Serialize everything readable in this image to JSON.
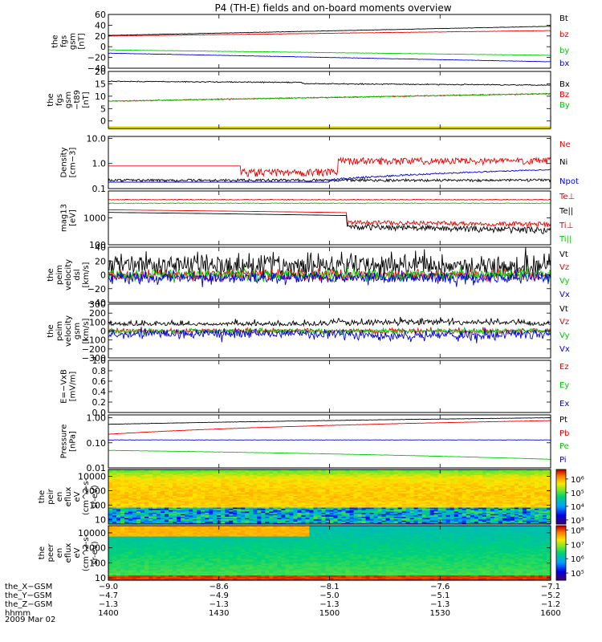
{
  "title": "P4 (TH-E) fields and on-board moments overview",
  "date_label": "2009 Mar 02",
  "colors": {
    "black": "#000000",
    "red": "#ee0000",
    "green": "#00cc00",
    "blue": "#0000dd",
    "yellow": "#ffee00"
  },
  "chart_data": [
    {
      "type": "line",
      "ylabel": [
        "the",
        "fgs",
        "gsm",
        "[nT]"
      ],
      "ylim": [
        -40,
        60
      ],
      "yticks": [
        "60",
        "40",
        "20",
        "0",
        "−20",
        "−40"
      ],
      "ytick_values": [
        60,
        40,
        20,
        0,
        -20,
        -40
      ],
      "series": [
        {
          "name": "Bt",
          "color": "black",
          "start": 21,
          "end": 38
        },
        {
          "name": "bz",
          "color": "red",
          "start": 20,
          "end": 30
        },
        {
          "name": "by",
          "color": "green",
          "start": -6,
          "end": -16
        },
        {
          "name": "bx",
          "color": "blue",
          "start": -12,
          "end": -28
        }
      ]
    },
    {
      "type": "line",
      "ylabel": [
        "the",
        "fgs",
        "gsm",
        "−t89",
        "[nT]"
      ],
      "ylim": [
        -3,
        20
      ],
      "yticks": [
        "20",
        "15",
        "10",
        "5",
        "0"
      ],
      "ytick_values": [
        20,
        15,
        10,
        5,
        0
      ],
      "series": [
        {
          "name": "Bx",
          "color": "black",
          "start": 16,
          "end": 15
        },
        {
          "name": "Bz",
          "color": "red",
          "start": 8,
          "end": 11
        },
        {
          "name": "By",
          "color": "green",
          "start": 8,
          "end": 11
        }
      ]
    },
    {
      "type": "line",
      "scale": "log",
      "ylabel": [
        "Density",
        "[cm−3]"
      ],
      "ylim": [
        0.1,
        12
      ],
      "yticks": [
        "10.0",
        "1.0",
        "0.1"
      ],
      "ytick_values": [
        10,
        1,
        0.1
      ],
      "series": [
        {
          "name": "Ne",
          "color": "red"
        },
        {
          "name": "Ni",
          "color": "black"
        },
        {
          "name": "Npot",
          "color": "blue"
        }
      ]
    },
    {
      "type": "line",
      "scale": "log",
      "ylabel": [
        "mag13",
        "[eV]"
      ],
      "ylim": [
        100,
        10000
      ],
      "yticks": [
        "1000",
        "100"
      ],
      "ytick_values": [
        1000,
        100
      ],
      "series": [
        {
          "name": "Te⊥",
          "color": "red"
        },
        {
          "name": "Te||",
          "color": "black"
        },
        {
          "name": "Ti⊥",
          "color": "red"
        },
        {
          "name": "Ti||",
          "color": "green"
        }
      ]
    },
    {
      "type": "line",
      "ylabel": [
        "the",
        "peim",
        "velocity",
        "dsl",
        "[km/s]"
      ],
      "ylim": [
        -40,
        40
      ],
      "yticks": [
        "40",
        "20",
        "0",
        "−20",
        "−40"
      ],
      "ytick_values": [
        40,
        20,
        0,
        -20,
        -40
      ],
      "series": [
        {
          "name": "Vt",
          "color": "black"
        },
        {
          "name": "Vz",
          "color": "red"
        },
        {
          "name": "Vy",
          "color": "green"
        },
        {
          "name": "Vx",
          "color": "blue"
        }
      ]
    },
    {
      "type": "line",
      "ylabel": [
        "the",
        "peim",
        "velocity",
        "gsm",
        "[km/s]"
      ],
      "ylim": [
        -300,
        300
      ],
      "yticks": [
        "300",
        "200",
        "100",
        "0",
        "−100",
        "−200",
        "−300"
      ],
      "ytick_values": [
        300,
        200,
        100,
        0,
        -100,
        -200,
        -300
      ],
      "series": [
        {
          "name": "Vt",
          "color": "black"
        },
        {
          "name": "Vz",
          "color": "red"
        },
        {
          "name": "Vy",
          "color": "green"
        },
        {
          "name": "Vx",
          "color": "blue"
        }
      ]
    },
    {
      "type": "line",
      "ylabel": [
        "E=−VxB",
        "[mV/m]"
      ],
      "ylim": [
        0,
        1
      ],
      "yticks": [
        "1.0",
        "0.8",
        "0.6",
        "0.4",
        "0.2",
        "0.0"
      ],
      "ytick_values": [
        1,
        0.8,
        0.6,
        0.4,
        0.2,
        0
      ],
      "series": [
        {
          "name": "Ez",
          "color": "red"
        },
        {
          "name": "Ey",
          "color": "green"
        },
        {
          "name": "Ex",
          "color": "blue"
        }
      ]
    },
    {
      "type": "line",
      "scale": "log",
      "ylabel": [
        "Pressure",
        "[nPa]"
      ],
      "ylim": [
        0.01,
        1.3
      ],
      "yticks": [
        "1.00",
        "0.10",
        "0.01"
      ],
      "ytick_values": [
        1,
        0.1,
        0.01
      ],
      "series": [
        {
          "name": "Pt",
          "color": "black"
        },
        {
          "name": "Pb",
          "color": "red"
        },
        {
          "name": "Pe",
          "color": "green"
        },
        {
          "name": "Pi",
          "color": "blue"
        }
      ]
    },
    {
      "type": "heatmap",
      "scale": "log",
      "ylabel": [
        "the",
        "peir",
        "en",
        "eflux",
        "eV",
        "(cm^2-s-",
        "sr-eV)"
      ],
      "ylim": [
        5,
        30000
      ],
      "yticks": [
        "10000",
        "1000",
        "100",
        "10"
      ],
      "ytick_values": [
        10000,
        1000,
        100,
        10
      ],
      "colorbar": [
        "10⁶",
        "10⁵",
        "10⁴",
        "10³"
      ],
      "colorbar_values": [
        6,
        5,
        4,
        3
      ],
      "colorbar_range": [
        2.7,
        6.7
      ]
    },
    {
      "type": "heatmap",
      "scale": "log",
      "ylabel": [
        "the",
        "peer",
        "en",
        "eflux",
        "eV",
        "(cm^2-s-",
        "sr-eV)"
      ],
      "ylim": [
        7,
        30000
      ],
      "yticks": [
        "10000",
        "1000",
        "100",
        "10"
      ],
      "ytick_values": [
        10000,
        1000,
        100,
        10
      ],
      "colorbar": [
        "10⁸",
        "10⁷",
        "10⁶",
        "10⁵"
      ],
      "colorbar_values": [
        8,
        7,
        6,
        5
      ],
      "colorbar_range": [
        4.5,
        8.3
      ]
    }
  ],
  "xaxis": {
    "rows": [
      {
        "label": "the_X−GSM",
        "values": [
          "−9.0",
          "−8.6",
          "−8.1",
          "−7.6",
          "−7.1"
        ]
      },
      {
        "label": "the_Y−GSM",
        "values": [
          "−4.7",
          "−4.9",
          "−5.0",
          "−5.1",
          "−5.2"
        ]
      },
      {
        "label": "the_Z−GSM",
        "values": [
          "−1.3",
          "−1.3",
          "−1.3",
          "−1.3",
          "−1.2"
        ]
      },
      {
        "label": "hhmm",
        "values": [
          "1400",
          "1430",
          "1500",
          "1530",
          "1600"
        ]
      }
    ],
    "time_minutes": [
      0,
      30,
      60,
      90,
      120
    ]
  }
}
